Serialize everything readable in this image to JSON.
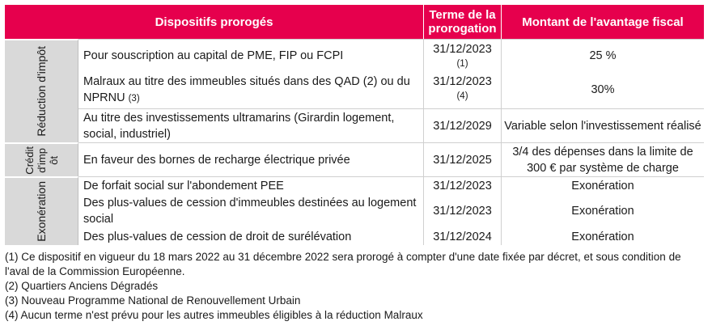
{
  "header": {
    "col1": "Dispositifs prorogés",
    "col2": "Terme de la prorogation",
    "col3": "Montant de l'avantage fiscal"
  },
  "groups": [
    {
      "label": "Réduction d'impôt",
      "rows": [
        {
          "text": "Pour souscription au capital de PME, FIP ou FCPI",
          "date": "31/12/2023",
          "date_note": "(1)",
          "amount": "25 %"
        },
        {
          "text": "Malraux au titre des immeubles situés dans des QAD (2) ou du NPRNU",
          "text_note": "(3)",
          "date": "31/12/2023",
          "date_note": "(4)",
          "amount": "30%"
        },
        {
          "text": "Au titre des investissements ultramarins (Girardin logement, social, industriel)",
          "date": "31/12/2029",
          "amount": "Variable selon l'investissement réalisé"
        }
      ]
    },
    {
      "label": "Crédit d'impôt",
      "label_lines": [
        "Crédit",
        "d'imp",
        "ôt"
      ],
      "rows": [
        {
          "text": "En faveur des bornes de recharge électrique privée",
          "date": "31/12/2025",
          "amount": "3/4 des dépenses dans la limite de 300 € par système de charge"
        }
      ]
    },
    {
      "label": "Exonération",
      "rows": [
        {
          "text": "De forfait social sur l'abondement PEE",
          "date": "31/12/2023",
          "amount": "Exonération"
        },
        {
          "text": "Des plus-values de cession d'immeubles destinées au logement social",
          "date": "31/12/2023",
          "amount": "Exonération"
        },
        {
          "text": "Des plus-values de cession de droit de surélévation",
          "date": "31/12/2024",
          "amount": "Exonération"
        }
      ]
    }
  ],
  "footnotes": [
    "(1) Ce dispositif en vigueur du 18 mars 2022 au 31 décembre 2022 sera prorogé à compter d'une date fixée par décret, et sous condition de l'aval de la Commission Européenne.",
    "(2) Quartiers Anciens Dégradés",
    "(3) Nouveau Programme National de Renouvellement Urbain",
    "(4) Aucun terme n'est prévu pour les autres immeubles éligibles à la réduction Malraux"
  ],
  "colors": {
    "header": "#e6004d",
    "side": "#d9d9d9"
  }
}
